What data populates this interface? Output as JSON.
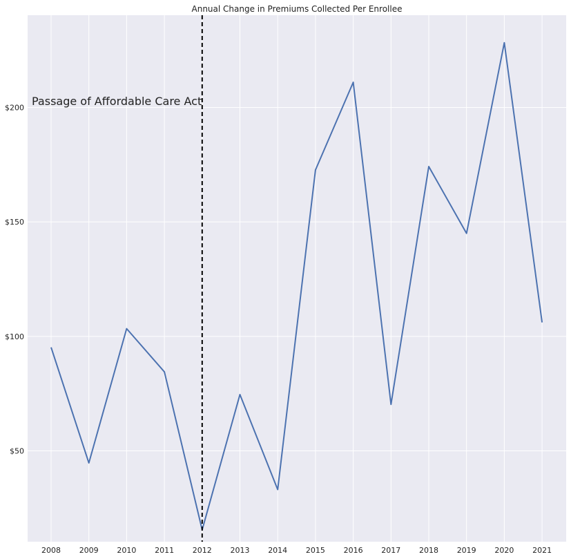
{
  "chart_data": {
    "type": "line",
    "title": "Annual Change in Premiums Collected Per Enrollee",
    "xlabel": "",
    "ylabel": "",
    "x": [
      "2008",
      "2009",
      "2010",
      "2011",
      "2012",
      "2013",
      "2014",
      "2015",
      "2016",
      "2017",
      "2018",
      "2019",
      "2020",
      "2021"
    ],
    "series": [
      {
        "values": [
          95.2,
          44.7,
          103.4,
          84.5,
          15.5,
          74.6,
          33.1,
          172.7,
          211.0,
          70.3,
          174.2,
          145.0,
          228.3,
          106.1
        ]
      }
    ],
    "y_ticks": [
      50,
      100,
      150,
      200
    ],
    "y_tick_labels": [
      "$50",
      "$100",
      "$150",
      "$200"
    ],
    "ylim": [
      10.3,
      240.3
    ],
    "grid": true,
    "line_color": "#4c72b0",
    "background_color": "#eaeaf2",
    "grid_color": "#ffffff",
    "vline": {
      "x": "2012",
      "color": "#000000",
      "style": "dashed"
    },
    "annotation": {
      "text": "Passage of Affordable Care Act",
      "x": "2008",
      "y": 201
    }
  }
}
